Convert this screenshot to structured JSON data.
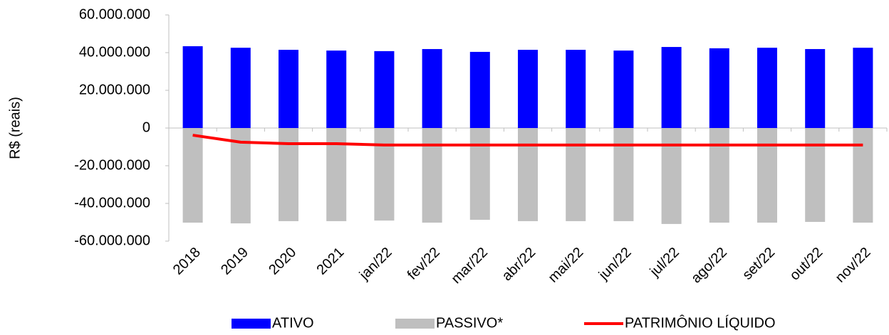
{
  "chart_data": {
    "type": "bar",
    "y_label": "R$ (reais)",
    "categories": [
      "2018",
      "2019",
      "2020",
      "2021",
      "jan/22",
      "fev/22",
      "mar/22",
      "abr/22",
      "mai/22",
      "jun/22",
      "jul/22",
      "ago/22",
      "set/22",
      "out/22",
      "nov/22"
    ],
    "series": [
      {
        "name": "ATIVO",
        "type": "bar",
        "color": "#0000ff",
        "values": [
          43400000,
          42600000,
          41500000,
          41100000,
          40800000,
          41900000,
          40400000,
          41500000,
          41500000,
          41100000,
          43000000,
          42300000,
          42600000,
          41900000,
          42600000
        ]
      },
      {
        "name": "PASSIVO*",
        "type": "bar",
        "color": "#bfbfbf",
        "values": [
          -50200000,
          -50600000,
          -49400000,
          -49400000,
          -49100000,
          -50200000,
          -48700000,
          -49400000,
          -49400000,
          -49400000,
          -50900000,
          -50200000,
          -50200000,
          -49800000,
          -50200000
        ]
      },
      {
        "name": "PATRIMÔNIO LÍQUIDO",
        "type": "line",
        "color": "#ff0000",
        "values": [
          -3800000,
          -7500000,
          -8300000,
          -8300000,
          -9000000,
          -9000000,
          -9000000,
          -9000000,
          -9000000,
          -9000000,
          -9000000,
          -9000000,
          -9000000,
          -9000000,
          -9000000
        ]
      }
    ],
    "ylim": [
      -60000000,
      60000000
    ],
    "yticks": [
      {
        "value": 60000000,
        "label": "60.000.000"
      },
      {
        "value": 40000000,
        "label": "40.000.000"
      },
      {
        "value": 20000000,
        "label": "20.000.000"
      },
      0,
      {
        "value": -20000000,
        "label": "-20.000.000"
      },
      {
        "value": -40000000,
        "label": "-40.000.000"
      },
      {
        "value": -60000000,
        "label": "-60.000.000"
      }
    ],
    "legend": "bottom"
  }
}
